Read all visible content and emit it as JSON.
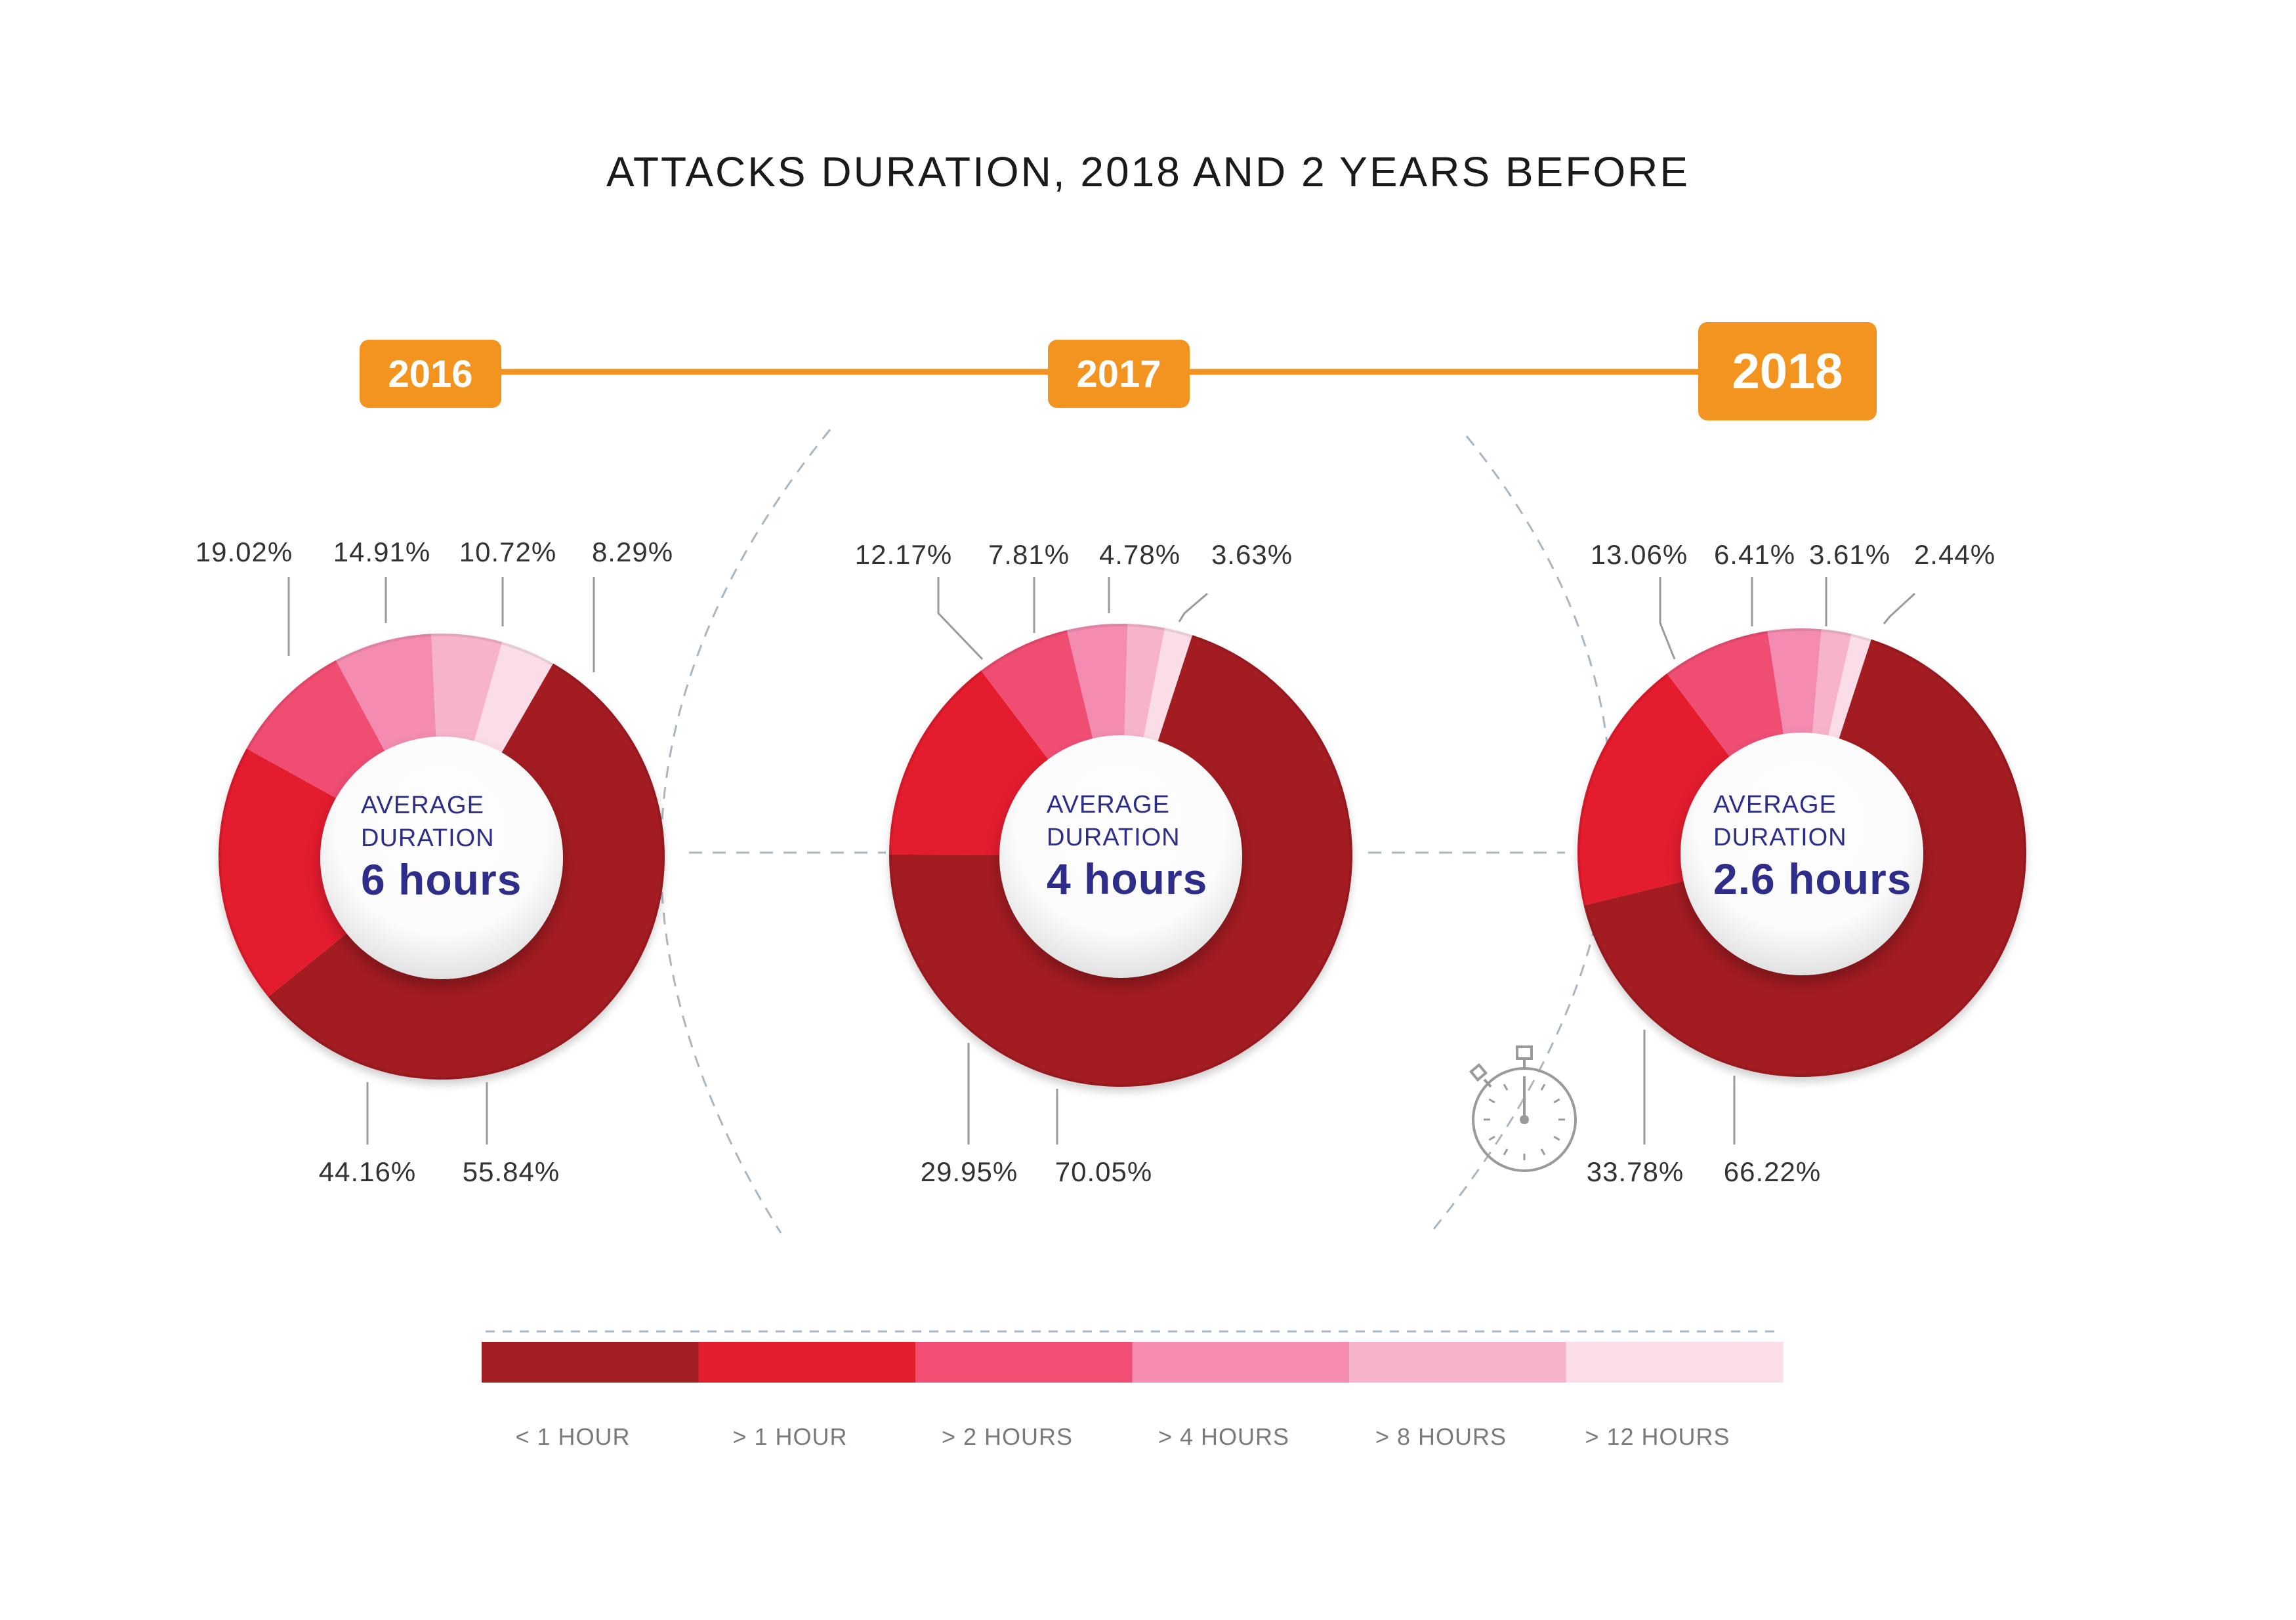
{
  "title": "ATTACKS DURATION, 2018 AND 2 YEARS BEFORE",
  "colors": {
    "accent": "#f2941f",
    "text_blue": "#2e2e8a",
    "lt_1_hour": "#a31e24",
    "gt_1_hour": "#e31e2d",
    "gt_2_hours": "#f04e73",
    "gt_4_hours": "#f38cb0",
    "gt_8_hours": "#f7b3ca",
    "gt_12_hours": "#fbdde7"
  },
  "icons": [
    "stopwatch-icon"
  ],
  "chart_data": [
    {
      "type": "pie",
      "year": "2016",
      "center_caption": [
        "AVERAGE",
        "DURATION"
      ],
      "center_value": "6 hours",
      "slices": [
        {
          "category": "< 1 HOUR",
          "value": 55.84,
          "label": "55.84%"
        },
        {
          "category": "> 1 HOUR",
          "value": 44.16,
          "label": "44.16%"
        },
        {
          "category": "> 2 HOURS",
          "value": 19.02,
          "label": "19.02%"
        },
        {
          "category": "> 4 HOURS",
          "value": 14.91,
          "label": "14.91%"
        },
        {
          "category": "> 8 HOURS",
          "value": 10.72,
          "label": "10.72%"
        },
        {
          "category": "> 12 HOURS",
          "value": 8.29,
          "label": "8.29%"
        }
      ]
    },
    {
      "type": "pie",
      "year": "2017",
      "center_caption": [
        "AVERAGE",
        "DURATION"
      ],
      "center_value": "4 hours",
      "slices": [
        {
          "category": "< 1 HOUR",
          "value": 70.05,
          "label": "70.05%"
        },
        {
          "category": "> 1 HOUR",
          "value": 29.95,
          "label": "29.95%"
        },
        {
          "category": "> 2 HOURS",
          "value": 12.17,
          "label": "12.17%"
        },
        {
          "category": "> 4 HOURS",
          "value": 7.81,
          "label": "7.81%"
        },
        {
          "category": "> 8 HOURS",
          "value": 4.78,
          "label": "4.78%"
        },
        {
          "category": "> 12 HOURS",
          "value": 3.63,
          "label": "3.63%"
        }
      ]
    },
    {
      "type": "pie",
      "year": "2018",
      "center_caption": [
        "AVERAGE",
        "DURATION"
      ],
      "center_value": "2.6 hours",
      "slices": [
        {
          "category": "< 1 HOUR",
          "value": 66.22,
          "label": "66.22%"
        },
        {
          "category": "> 1 HOUR",
          "value": 33.78,
          "label": "33.78%"
        },
        {
          "category": "> 2 HOURS",
          "value": 13.06,
          "label": "13.06%"
        },
        {
          "category": "> 4 HOURS",
          "value": 6.41,
          "label": "6.41%"
        },
        {
          "category": "> 8 HOURS",
          "value": 3.61,
          "label": "3.61%"
        },
        {
          "category": "> 12 HOURS",
          "value": 2.44,
          "label": "2.44%"
        }
      ]
    }
  ],
  "legend": {
    "items": [
      "< 1 HOUR",
      "> 1 HOUR",
      "> 2 HOURS",
      "> 4 HOURS",
      "> 8 HOURS",
      "> 12 HOURS"
    ]
  }
}
